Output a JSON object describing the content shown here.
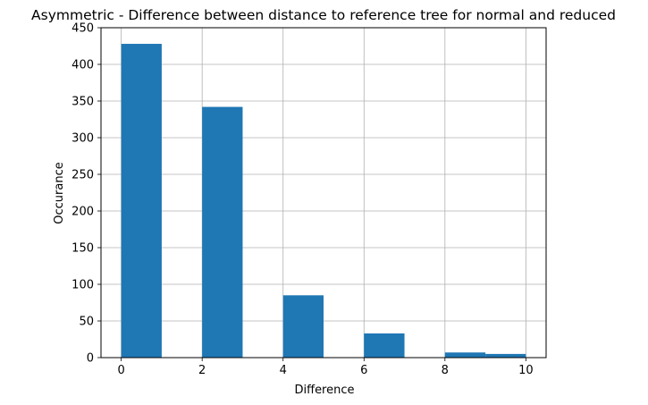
{
  "chart_data": {
    "type": "bar",
    "title": "Asymmetric - Difference between distance to reference tree for normal and reduced",
    "xlabel": "Difference",
    "ylabel": "Occurance",
    "xlim": [
      -0.5,
      10.5
    ],
    "ylim": [
      0,
      450
    ],
    "xticks": [
      0,
      2,
      4,
      6,
      8,
      10
    ],
    "yticks": [
      0,
      50,
      100,
      150,
      200,
      250,
      300,
      350,
      400,
      450
    ],
    "grid": true,
    "bar_color": "#1f77b4",
    "bins": [
      {
        "x0": 0,
        "x1": 1,
        "value": 428
      },
      {
        "x0": 2,
        "x1": 3,
        "value": 342
      },
      {
        "x0": 4,
        "x1": 5,
        "value": 85
      },
      {
        "x0": 6,
        "x1": 7,
        "value": 33
      },
      {
        "x0": 8,
        "x1": 9,
        "value": 7
      },
      {
        "x0": 9,
        "x1": 10,
        "value": 5
      }
    ]
  }
}
